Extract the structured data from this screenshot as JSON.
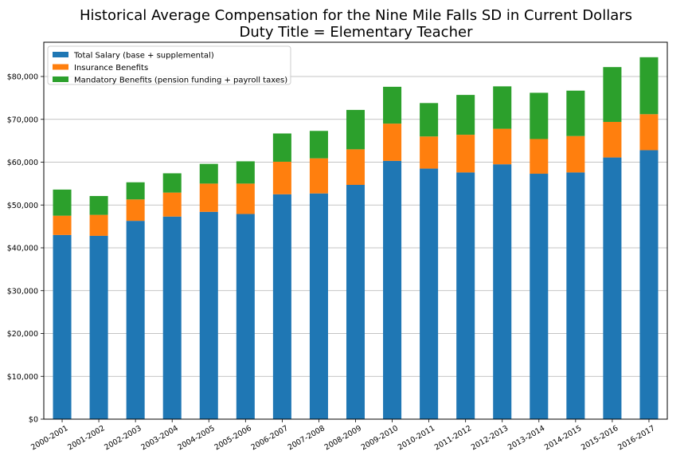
{
  "chart_data": {
    "type": "bar",
    "stacked": true,
    "title": "Historical Average Compensation for the Nine Mile Falls SD in Current Dollars",
    "subtitle": "Duty Title = Elementary Teacher",
    "xlabel": "",
    "ylabel": "",
    "ylim": [
      0,
      88000
    ],
    "yticks": [
      "$0",
      "$10,000",
      "$20,000",
      "$30,000",
      "$40,000",
      "$50,000",
      "$60,000",
      "$70,000",
      "$80,000"
    ],
    "ytick_values": [
      0,
      10000,
      20000,
      30000,
      40000,
      50000,
      60000,
      70000,
      80000
    ],
    "grid": "horizontal",
    "legend_position": "top-left",
    "categories": [
      "2000-2001",
      "2001-2002",
      "2002-2003",
      "2003-2004",
      "2004-2005",
      "2005-2006",
      "2006-2007",
      "2007-2008",
      "2008-2009",
      "2009-2010",
      "2010-2011",
      "2011-2012",
      "2012-2013",
      "2013-2014",
      "2014-2015",
      "2015-2016",
      "2016-2017"
    ],
    "series": [
      {
        "name": "Total Salary (base + supplemental)",
        "color": "#1f77b4",
        "values": [
          43000,
          42800,
          46300,
          47300,
          48400,
          47900,
          52500,
          52700,
          54700,
          60300,
          58500,
          57600,
          59500,
          57300,
          57600,
          61100,
          62800
        ]
      },
      {
        "name": "Insurance Benefits",
        "color": "#ff7f0e",
        "values": [
          4500,
          4900,
          5000,
          5600,
          6600,
          7100,
          7600,
          8200,
          8300,
          8700,
          7500,
          8800,
          8300,
          8100,
          8500,
          8300,
          8400
        ]
      },
      {
        "name": "Mandatory Benefits (pension funding + payroll taxes)",
        "color": "#2ca02c",
        "values": [
          6100,
          4400,
          4000,
          4500,
          4600,
          5200,
          6600,
          6400,
          9200,
          8600,
          7800,
          9300,
          9900,
          10800,
          10600,
          12800,
          13300
        ]
      }
    ]
  }
}
